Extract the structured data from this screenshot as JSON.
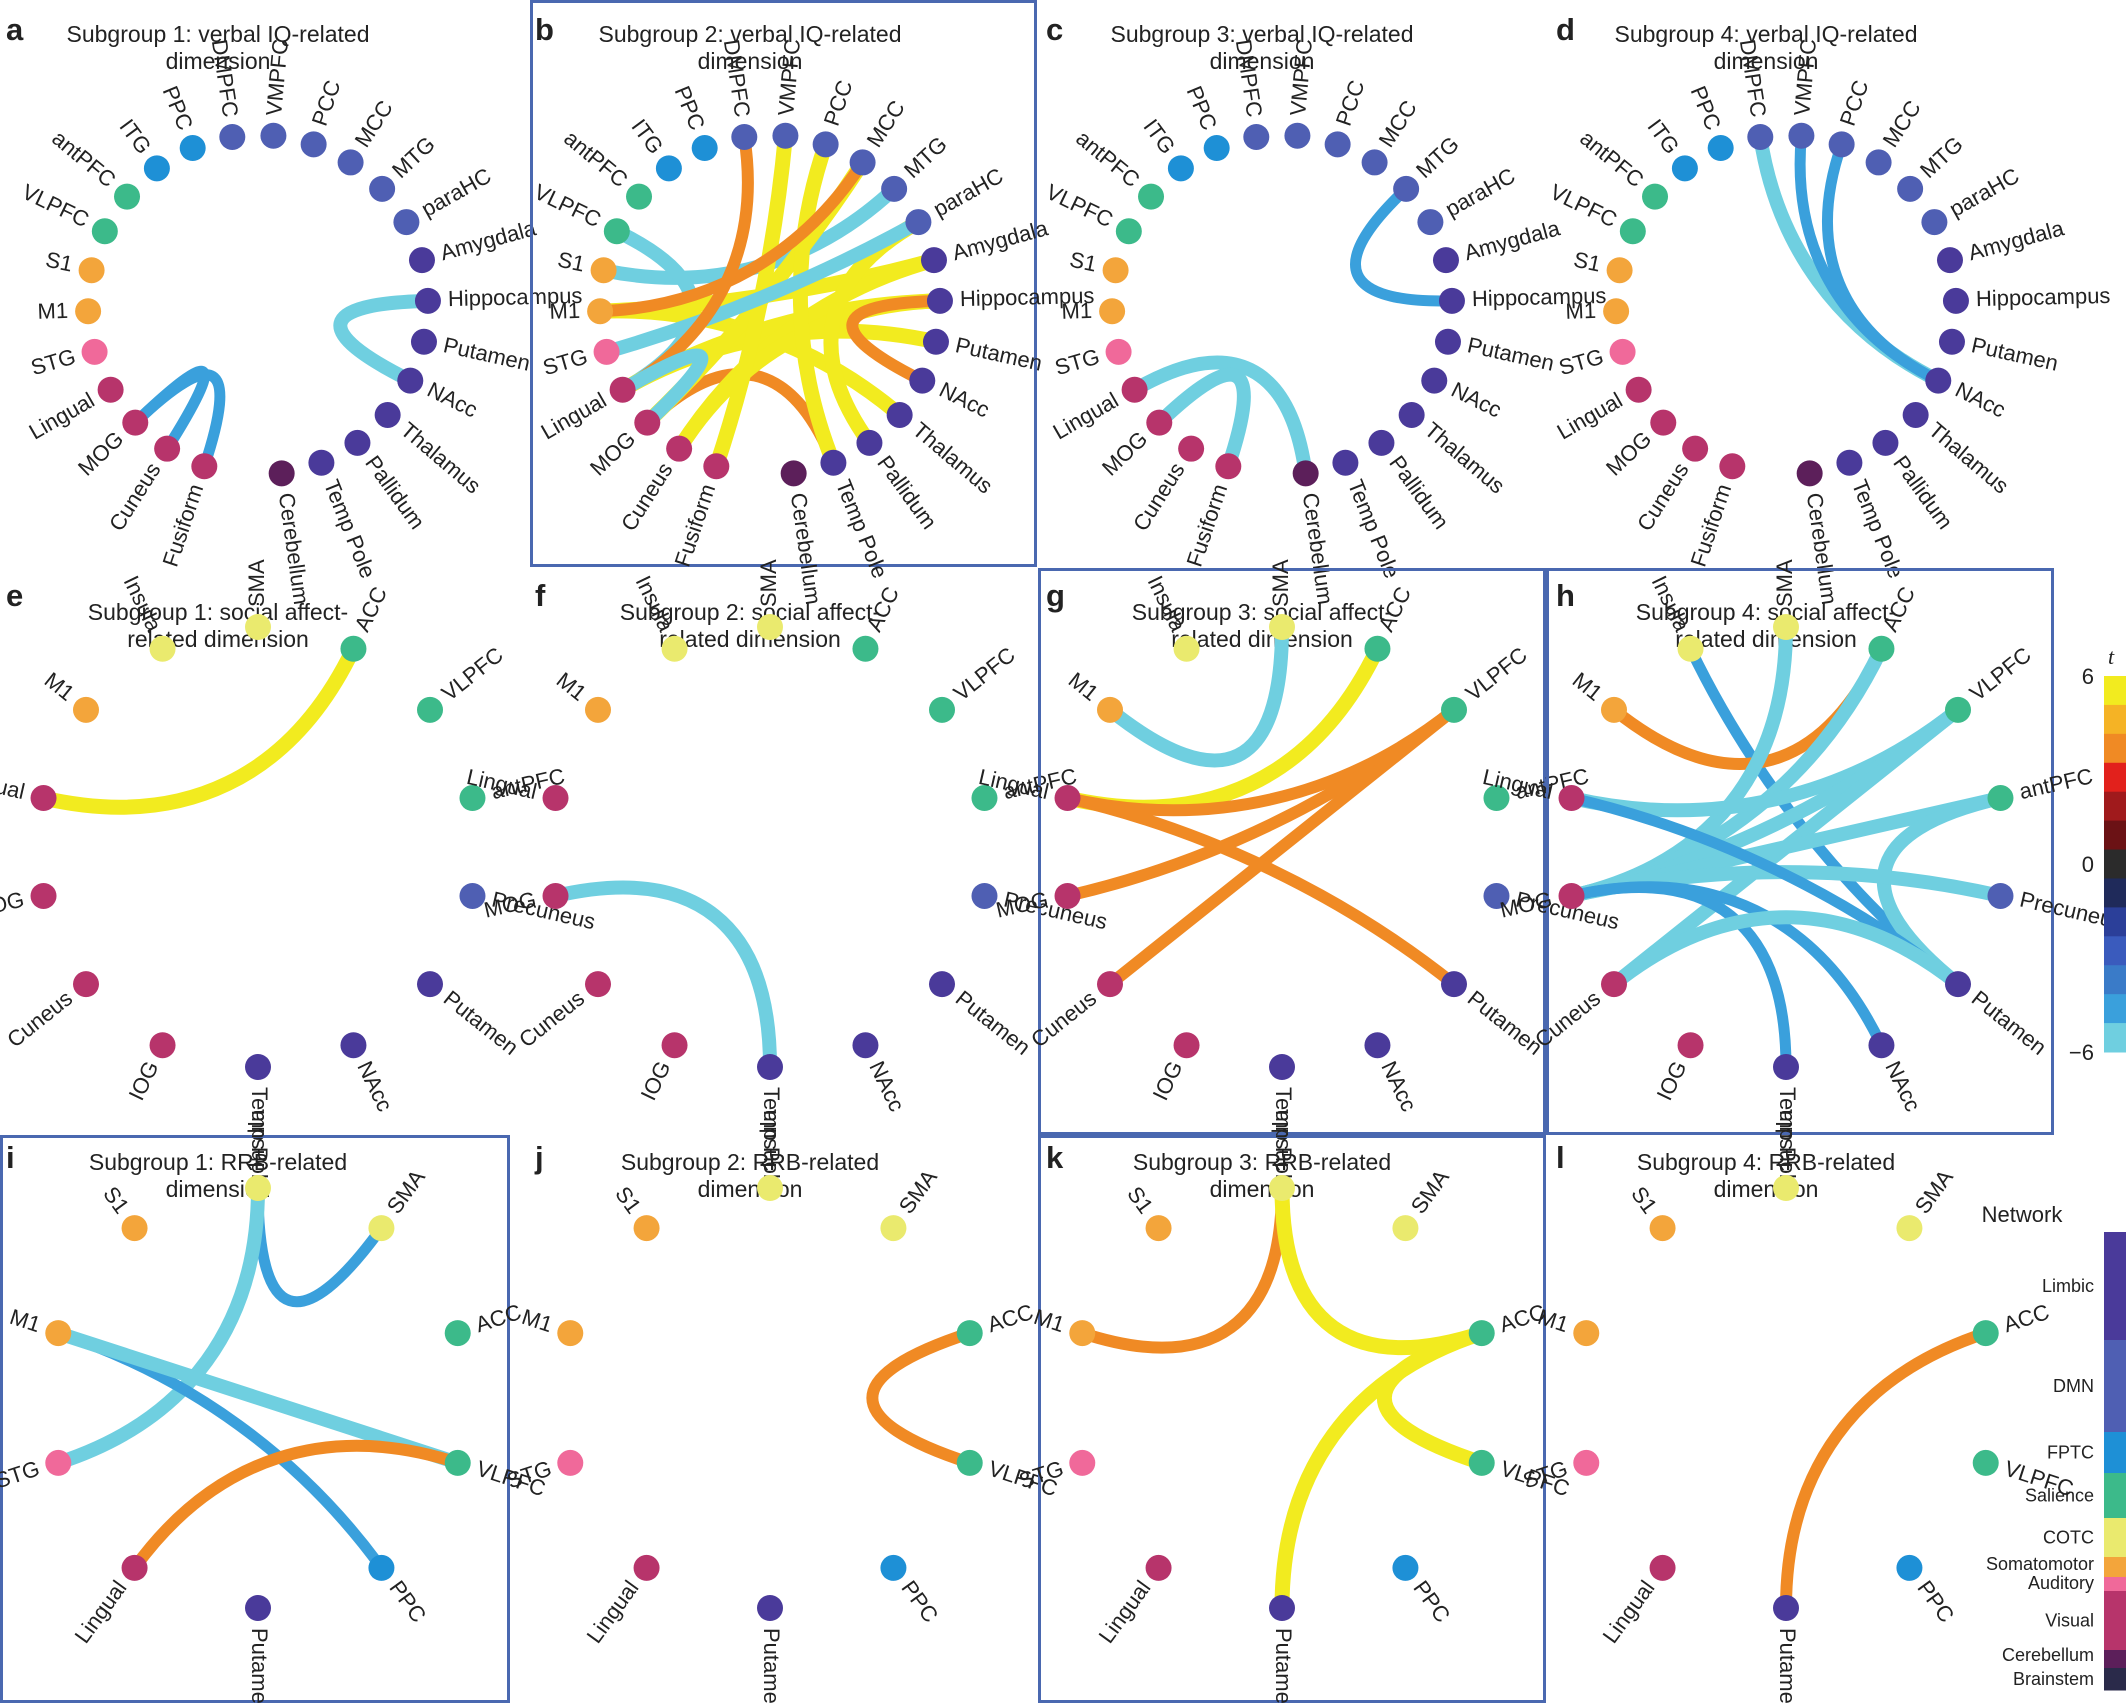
{
  "network_colors": {
    "Limbic": "#4a3a9a",
    "DMN": "#4f5fb3",
    "FPTC": "#1e90d6",
    "Salience": "#3cba8a",
    "COTC": "#eaea6e",
    "Somatomotor": "#f3a53b",
    "Auditory": "#f0699a",
    "Visual": "#b7346b",
    "Cerebellum": "#5c1f5a",
    "Brainstem": "#2a2a4a"
  },
  "weight_colors": {
    "pos_strong": "#f2eb1f",
    "pos_mid": "#f08a24",
    "neg_mid": "#3aa0dc",
    "neg_strong": "#6fcfe0"
  },
  "node_sets": {
    "verbal": [
      {
        "name": "Cerebellum",
        "net": "Cerebellum"
      },
      {
        "name": "Temp Pole",
        "net": "Limbic"
      },
      {
        "name": "Pallidum",
        "net": "Limbic"
      },
      {
        "name": "Thalamus",
        "net": "Limbic"
      },
      {
        "name": "NAcc",
        "net": "Limbic"
      },
      {
        "name": "Putamen",
        "net": "Limbic"
      },
      {
        "name": "Hippocampus",
        "net": "Limbic"
      },
      {
        "name": "Amygdala",
        "net": "Limbic"
      },
      {
        "name": "paraHC",
        "net": "DMN"
      },
      {
        "name": "MTG",
        "net": "DMN"
      },
      {
        "name": "MCC",
        "net": "DMN"
      },
      {
        "name": "PCC",
        "net": "DMN"
      },
      {
        "name": "VMPFC",
        "net": "DMN"
      },
      {
        "name": "DMPFC",
        "net": "DMN"
      },
      {
        "name": "PPC",
        "net": "FPTC"
      },
      {
        "name": "ITG",
        "net": "FPTC"
      },
      {
        "name": "antPFC",
        "net": "Salience"
      },
      {
        "name": "VLPFC",
        "net": "Salience"
      },
      {
        "name": "S1",
        "net": "Somatomotor"
      },
      {
        "name": "M1",
        "net": "Somatomotor"
      },
      {
        "name": "STG",
        "net": "Auditory"
      },
      {
        "name": "Lingual",
        "net": "Visual"
      },
      {
        "name": "MOG",
        "net": "Visual"
      },
      {
        "name": "Cuneus",
        "net": "Visual"
      },
      {
        "name": "Fusiform",
        "net": "Visual"
      }
    ],
    "social": [
      {
        "name": "Temp Pole",
        "net": "Limbic"
      },
      {
        "name": "NAcc",
        "net": "Limbic"
      },
      {
        "name": "Putamen",
        "net": "Limbic"
      },
      {
        "name": "Precuneus",
        "net": "DMN"
      },
      {
        "name": "antPFC",
        "net": "Salience"
      },
      {
        "name": "VLPFC",
        "net": "Salience"
      },
      {
        "name": "ACC",
        "net": "Salience"
      },
      {
        "name": "SMA",
        "net": "COTC"
      },
      {
        "name": "Insula",
        "net": "COTC"
      },
      {
        "name": "M1",
        "net": "Somatomotor"
      },
      {
        "name": "Lingual",
        "net": "Visual"
      },
      {
        "name": "MOG",
        "net": "Visual"
      },
      {
        "name": "Cuneus",
        "net": "Visual"
      },
      {
        "name": "IOG",
        "net": "Visual"
      }
    ],
    "rrb": [
      {
        "name": "Putamen",
        "net": "Limbic"
      },
      {
        "name": "PPC",
        "net": "FPTC"
      },
      {
        "name": "VLPFC",
        "net": "Salience"
      },
      {
        "name": "ACC",
        "net": "Salience"
      },
      {
        "name": "SMA",
        "net": "COTC"
      },
      {
        "name": "Insula",
        "net": "COTC"
      },
      {
        "name": "S1",
        "net": "Somatomotor"
      },
      {
        "name": "M1",
        "net": "Somatomotor"
      },
      {
        "name": "STG",
        "net": "Auditory"
      },
      {
        "name": "Lingual",
        "net": "Visual"
      }
    ]
  },
  "panels": [
    {
      "letter": "a",
      "title": [
        "Subgroup 1: verbal IQ-related",
        "dimension"
      ],
      "nodes": "verbal",
      "boxed": false,
      "edges": [
        [
          "MOG",
          "Fusiform",
          "neg_mid"
        ],
        [
          "Cuneus",
          "MOG",
          "neg_mid"
        ],
        [
          "Hippocampus",
          "NAcc",
          "neg_strong"
        ]
      ]
    },
    {
      "letter": "b",
      "title": [
        "Subgroup 2: verbal IQ-related",
        "dimension"
      ],
      "nodes": "verbal",
      "boxed": true,
      "edges": [
        [
          "S1",
          "MTG",
          "neg_strong"
        ],
        [
          "VLPFC",
          "Lingual",
          "neg_strong"
        ],
        [
          "M1",
          "Amygdala",
          "pos_strong"
        ],
        [
          "M1",
          "Thalamus",
          "pos_strong"
        ],
        [
          "Lingual",
          "Putamen",
          "pos_strong"
        ],
        [
          "Lingual",
          "Hippocampus",
          "pos_strong"
        ],
        [
          "MOG",
          "Temp Pole",
          "pos_mid"
        ],
        [
          "Cuneus",
          "Amygdala",
          "pos_strong"
        ],
        [
          "Cuneus",
          "Hippocampus",
          "pos_strong"
        ],
        [
          "MOG",
          "MCC",
          "pos_strong"
        ],
        [
          "Fusiform",
          "VMPFC",
          "pos_strong"
        ],
        [
          "Temp Pole",
          "PCC",
          "pos_strong"
        ],
        [
          "Pallidum",
          "paraHC",
          "pos_strong"
        ],
        [
          "STG",
          "paraHC",
          "neg_strong"
        ],
        [
          "M1",
          "MCC",
          "pos_mid"
        ],
        [
          "DMPFC",
          "Lingual",
          "pos_mid"
        ],
        [
          "NAcc",
          "Hippocampus",
          "pos_mid"
        ],
        [
          "Lingual",
          "MOG",
          "neg_strong"
        ]
      ]
    },
    {
      "letter": "c",
      "title": [
        "Subgroup 3: verbal IQ-related",
        "dimension"
      ],
      "nodes": "verbal",
      "boxed": false,
      "edges": [
        [
          "MTG",
          "Hippocampus",
          "neg_mid"
        ],
        [
          "Lingual",
          "Cerebellum",
          "neg_strong"
        ],
        [
          "MOG",
          "Fusiform",
          "neg_strong"
        ]
      ]
    },
    {
      "letter": "d",
      "title": [
        "Subgroup 4: verbal IQ-related",
        "dimension"
      ],
      "nodes": "verbal",
      "boxed": false,
      "edges": [
        [
          "DMPFC",
          "NAcc",
          "neg_strong"
        ],
        [
          "VMPFC",
          "NAcc",
          "neg_mid"
        ],
        [
          "PCC",
          "NAcc",
          "neg_mid"
        ]
      ]
    },
    {
      "letter": "e",
      "title": [
        "Subgroup 1: social affect-",
        "related dimension"
      ],
      "nodes": "social",
      "boxed": false,
      "edges": [
        [
          "ACC",
          "Lingual",
          "pos_strong"
        ]
      ]
    },
    {
      "letter": "f",
      "title": [
        "Subgroup 2: social affect-",
        "related dimension"
      ],
      "nodes": "social",
      "boxed": false,
      "edges": [
        [
          "MOG",
          "Temp Pole",
          "neg_strong"
        ]
      ]
    },
    {
      "letter": "g",
      "title": [
        "Subgroup 3: social affect-",
        "related dimension"
      ],
      "nodes": "social",
      "boxed": true,
      "edges": [
        [
          "SMA",
          "M1",
          "neg_strong"
        ],
        [
          "ACC",
          "Lingual",
          "pos_strong"
        ],
        [
          "VLPFC",
          "Lingual",
          "pos_mid"
        ],
        [
          "VLPFC",
          "MOG",
          "pos_mid"
        ],
        [
          "VLPFC",
          "Cuneus",
          "pos_mid"
        ],
        [
          "Lingual",
          "Putamen",
          "pos_mid"
        ]
      ]
    },
    {
      "letter": "h",
      "title": [
        "Subgroup 4: social affect-",
        "related dimension"
      ],
      "nodes": "social",
      "boxed": true,
      "edges": [
        [
          "Insula",
          "Putamen",
          "neg_mid"
        ],
        [
          "M1",
          "ACC",
          "pos_mid"
        ],
        [
          "SMA",
          "MOG",
          "neg_strong"
        ],
        [
          "ACC",
          "MOG",
          "neg_strong"
        ],
        [
          "VLPFC",
          "Lingual",
          "neg_strong"
        ],
        [
          "VLPFC",
          "MOG",
          "neg_strong"
        ],
        [
          "VLPFC",
          "Cuneus",
          "neg_strong"
        ],
        [
          "antPFC",
          "MOG",
          "neg_strong"
        ],
        [
          "antPFC",
          "Putamen",
          "neg_strong"
        ],
        [
          "Precuneus",
          "MOG",
          "neg_strong"
        ],
        [
          "Putamen",
          "Lingual",
          "neg_mid"
        ],
        [
          "NAcc",
          "MOG",
          "neg_mid"
        ],
        [
          "Temp Pole",
          "MOG",
          "neg_mid"
        ],
        [
          "Cuneus",
          "Putamen",
          "neg_strong"
        ]
      ]
    },
    {
      "letter": "i",
      "title": [
        "Subgroup 1: RRB-related",
        "dimension"
      ],
      "nodes": "rrb",
      "boxed": true,
      "edges": [
        [
          "Insula",
          "SMA",
          "neg_mid"
        ],
        [
          "Insula",
          "STG",
          "neg_strong"
        ],
        [
          "M1",
          "PPC",
          "neg_mid"
        ],
        [
          "M1",
          "VLPFC",
          "neg_strong"
        ],
        [
          "Lingual",
          "VLPFC",
          "pos_mid"
        ]
      ]
    },
    {
      "letter": "j",
      "title": [
        "Subgroup 2: RRB-related",
        "dimension"
      ],
      "nodes": "rrb",
      "boxed": false,
      "edges": [
        [
          "ACC",
          "VLPFC",
          "pos_mid"
        ]
      ]
    },
    {
      "letter": "k",
      "title": [
        "Subgroup 3: RRB-related",
        "dimension"
      ],
      "nodes": "rrb",
      "boxed": true,
      "edges": [
        [
          "Insula",
          "M1",
          "pos_mid"
        ],
        [
          "Insula",
          "ACC",
          "pos_strong"
        ],
        [
          "ACC",
          "Putamen",
          "pos_strong"
        ],
        [
          "ACC",
          "VLPFC",
          "pos_strong"
        ]
      ]
    },
    {
      "letter": "l",
      "title": [
        "Subgroup 4: RRB-related",
        "dimension"
      ],
      "nodes": "rrb",
      "boxed": false,
      "edges": [
        [
          "ACC",
          "Putamen",
          "pos_mid"
        ]
      ]
    }
  ],
  "colorbar": {
    "title": "t",
    "ticks": [
      "6",
      "0",
      "−6"
    ],
    "values": [
      6,
      0,
      -6
    ],
    "colors": [
      "#f2eb1f",
      "#f5b325",
      "#f08a24",
      "#e2211c",
      "#a01a1c",
      "#6b1215",
      "#2b2b2b",
      "#1f2a5a",
      "#2b3f99",
      "#3a5bbd",
      "#3a7bc8",
      "#3aa0dc",
      "#6fcfe0"
    ]
  },
  "network_legend": {
    "title": "Network",
    "entries": [
      {
        "label": "Limbic",
        "color": "#4a3a9a"
      },
      {
        "label": "DMN",
        "color": "#4f5fb3"
      },
      {
        "label": "FPTC",
        "color": "#1e90d6"
      },
      {
        "label": "Salience",
        "color": "#3cba8a"
      },
      {
        "label": "COTC",
        "color": "#eaea6e"
      },
      {
        "label": "Somatomotor",
        "color": "#f3a53b"
      },
      {
        "label": "Auditory",
        "color": "#f0699a"
      },
      {
        "label": "Visual",
        "color": "#b7346b"
      },
      {
        "label": "Cerebellum",
        "color": "#5c1f5a"
      },
      {
        "label": "Brainstem",
        "color": "#2a2a4a"
      }
    ]
  }
}
